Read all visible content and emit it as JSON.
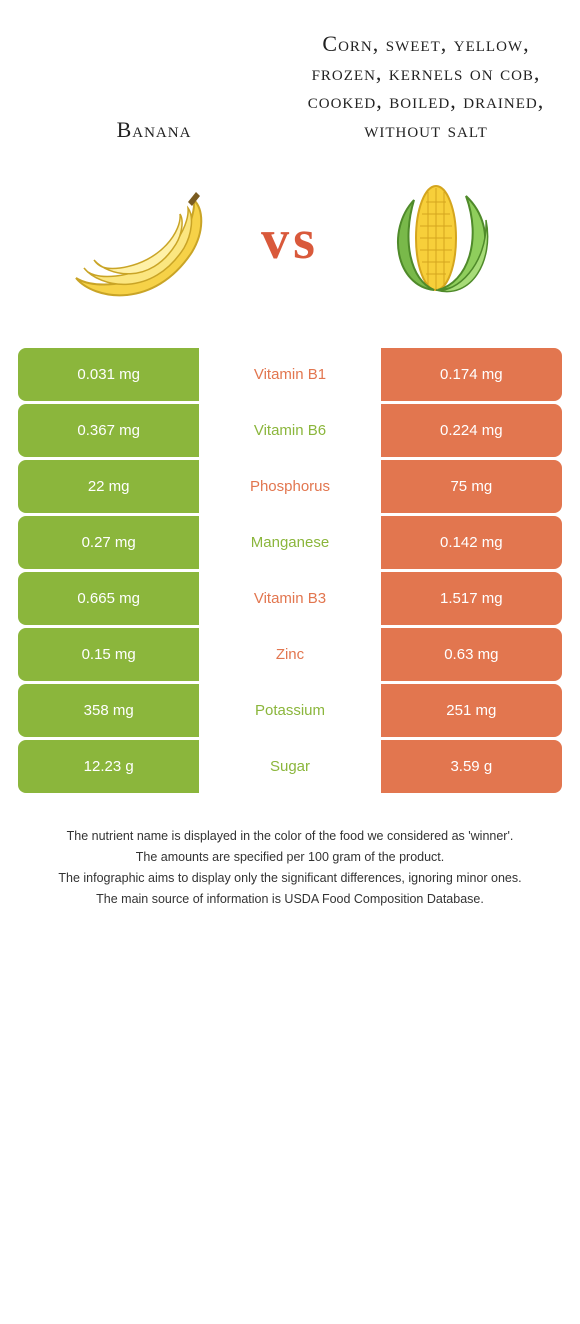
{
  "colors": {
    "green": "#8bb63c",
    "orange": "#e2764f",
    "vs": "#d9593b"
  },
  "left": {
    "title": "Banana"
  },
  "right": {
    "title": "Corn, sweet, yellow, frozen, kernels on cob, cooked, boiled, drained, without salt"
  },
  "vs": "vs",
  "rows": [
    {
      "name": "Vitamin B1",
      "left": "0.031 mg",
      "right": "0.174 mg",
      "winner": "right"
    },
    {
      "name": "Vitamin B6",
      "left": "0.367 mg",
      "right": "0.224 mg",
      "winner": "left"
    },
    {
      "name": "Phosphorus",
      "left": "22 mg",
      "right": "75 mg",
      "winner": "right"
    },
    {
      "name": "Manganese",
      "left": "0.27 mg",
      "right": "0.142 mg",
      "winner": "left"
    },
    {
      "name": "Vitamin B3",
      "left": "0.665 mg",
      "right": "1.517 mg",
      "winner": "right"
    },
    {
      "name": "Zinc",
      "left": "0.15 mg",
      "right": "0.63 mg",
      "winner": "right"
    },
    {
      "name": "Potassium",
      "left": "358 mg",
      "right": "251 mg",
      "winner": "left"
    },
    {
      "name": "Sugar",
      "left": "12.23 g",
      "right": "3.59 g",
      "winner": "left"
    }
  ],
  "notes": [
    "The nutrient name is displayed in the color of the food we considered as 'winner'.",
    "The amounts are specified per 100 gram of the product.",
    "The infographic aims to display only the significant differences, ignoring minor ones.",
    "The main source of information is USDA Food Composition Database."
  ]
}
